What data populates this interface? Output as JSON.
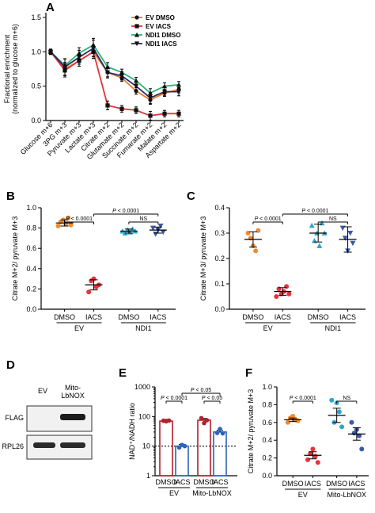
{
  "colors": {
    "ev_dmso": "#e8792b",
    "ev_iacs": "#e8323a",
    "ndi1_dmso": "#2bb37a",
    "ndi1_iacs": "#2b2a6b",
    "b_ev_dmso": "#f08a2c",
    "b_ev_iacs": "#e8323a",
    "b_ndi_dmso": "#2aa7c9",
    "b_ndi_iacs": "#3a5aa8",
    "e_ev_dmso": "#b3202a",
    "e_ev_iacs": "#2a63b8",
    "e_mito_dmso": "#b3202a",
    "e_mito_iacs": "#2a63b8"
  },
  "chart_data": [
    {
      "panel": "A",
      "type": "line",
      "ylabel": "Fractional enrichment\n(normalized to glucose m+6)",
      "categories": [
        "Glucose m+6",
        "3PG m+3",
        "Pyruvate m+3",
        "Lactate m+3",
        "Citrate m+2",
        "Glutamate m+2",
        "Succinate m+2",
        "Fumarate m+2",
        "Malate m+2",
        "Aspartate m+2"
      ],
      "ylim": [
        0,
        1.5
      ],
      "yticks": [
        "0.0",
        "0.5",
        "1.0",
        "1.5"
      ],
      "legend": [
        "EV DMSO",
        "EV IACS",
        "NDI1 DMSO",
        "NDI1 IACS"
      ],
      "series": [
        {
          "name": "EV DMSO",
          "values": [
            1.0,
            0.75,
            0.87,
            1.0,
            0.7,
            0.62,
            0.43,
            0.3,
            0.4,
            0.45
          ]
        },
        {
          "name": "EV IACS",
          "values": [
            1.0,
            0.73,
            0.87,
            1.0,
            0.22,
            0.17,
            0.15,
            0.07,
            0.1,
            0.1
          ]
        },
        {
          "name": "NDI1 DMSO",
          "values": [
            1.0,
            0.8,
            0.98,
            1.1,
            0.78,
            0.7,
            0.58,
            0.4,
            0.5,
            0.52
          ]
        },
        {
          "name": "NDI1 IACS",
          "values": [
            1.0,
            0.78,
            0.92,
            1.05,
            0.7,
            0.65,
            0.5,
            0.33,
            0.42,
            0.42
          ]
        }
      ]
    },
    {
      "panel": "B",
      "type": "scatter",
      "ylabel": "Citrate M+2/ pyruvate M+3",
      "ylim": [
        0.0,
        1.0
      ],
      "yticks": [
        "0.0",
        "0.2",
        "0.4",
        "0.6",
        "0.8",
        "1.0"
      ],
      "categories": [
        "DMSO",
        "IACS",
        "DMSO",
        "IACS"
      ],
      "groups": [
        "EV",
        "NDI1"
      ],
      "points": [
        [
          0.82,
          0.86,
          0.88,
          0.84,
          0.9,
          0.83
        ],
        [
          0.17,
          0.28,
          0.3,
          0.22,
          0.24
        ],
        [
          0.77,
          0.75,
          0.78,
          0.76,
          0.79,
          0.77
        ],
        [
          0.8,
          0.74,
          0.78,
          0.82,
          0.76
        ]
      ],
      "means": [
        0.85,
        0.24,
        0.77,
        0.78
      ],
      "errors": [
        0.03,
        0.05,
        0.02,
        0.03
      ],
      "brackets": [
        {
          "from": 0,
          "to": 1,
          "label": "P < 0.0001",
          "level": 0
        },
        {
          "from": 2,
          "to": 3,
          "label": "NS",
          "level": 0
        },
        {
          "from": 1,
          "to": 3,
          "label": "P < 0.0001",
          "level": 1
        }
      ]
    },
    {
      "panel": "C",
      "type": "scatter",
      "ylabel": "Citrate M+3/ pyruvate M+3",
      "ylim": [
        0.0,
        0.4
      ],
      "yticks": [
        "0.0",
        "0.1",
        "0.2",
        "0.3",
        "0.4"
      ],
      "categories": [
        "DMSO",
        "IACS",
        "DMSO",
        "IACS"
      ],
      "groups": [
        "EV",
        "NDI1"
      ],
      "points": [
        [
          0.3,
          0.28,
          0.25,
          0.23,
          0.31
        ],
        [
          0.05,
          0.08,
          0.06,
          0.07,
          0.09,
          0.06
        ],
        [
          0.33,
          0.27,
          0.3,
          0.25,
          0.34,
          0.3
        ],
        [
          0.32,
          0.28,
          0.23,
          0.3,
          0.26
        ]
      ],
      "means": [
        0.275,
        0.07,
        0.3,
        0.275
      ],
      "errors": [
        0.03,
        0.015,
        0.035,
        0.05
      ],
      "brackets": [
        {
          "from": 0,
          "to": 1,
          "label": "P < 0.0001",
          "level": 0
        },
        {
          "from": 2,
          "to": 3,
          "label": "NS",
          "level": 0
        },
        {
          "from": 1,
          "to": 3,
          "label": "P < 0.0001",
          "level": 1
        }
      ]
    },
    {
      "panel": "E",
      "type": "bar",
      "ylabel": "NAD⁺/NADH ratio",
      "ylim": [
        1,
        1000
      ],
      "yscale": "log",
      "yticks": [
        "1",
        "10",
        "100",
        "1000"
      ],
      "categories": [
        "DMSO",
        "IACS",
        "DMSO",
        "IACS"
      ],
      "groups": [
        "EV",
        "Mito-LbNOX"
      ],
      "values": [
        70,
        10,
        75,
        30
      ],
      "points": [
        [
          72,
          69,
          73
        ],
        [
          9,
          11,
          10
        ],
        [
          88,
          60,
          75
        ],
        [
          28,
          38,
          27
        ]
      ],
      "baseline": 10,
      "brackets": [
        {
          "from": 0,
          "to": 1,
          "label": "P < 0.0001",
          "level": 0
        },
        {
          "from": 2,
          "to": 3,
          "label": "P < 0.05",
          "level": 0
        },
        {
          "from": 1,
          "to": 3,
          "label": "P < 0.05",
          "level": 1
        }
      ]
    },
    {
      "panel": "F",
      "type": "scatter",
      "ylabel": "Citrate M+2/ pyruvate M+3",
      "ylim": [
        0.0,
        1.0
      ],
      "yticks": [
        "0.0",
        "0.2",
        "0.4",
        "0.6",
        "0.8",
        "1.0"
      ],
      "categories": [
        "DMSO",
        "IACS",
        "DMSO",
        "IACS"
      ],
      "groups": [
        "EV",
        "Mito-LbNOX"
      ],
      "points": [
        [
          0.6,
          0.65,
          0.67,
          0.63,
          0.62
        ],
        [
          0.18,
          0.25,
          0.3,
          0.22,
          0.15
        ],
        [
          0.85,
          0.6,
          0.82,
          0.72,
          0.55
        ],
        [
          0.6,
          0.48,
          0.52,
          0.45,
          0.3
        ]
      ],
      "means": [
        0.63,
        0.23,
        0.68,
        0.47
      ],
      "errors": [
        0.02,
        0.04,
        0.08,
        0.07
      ],
      "brackets": [
        {
          "from": 0,
          "to": 1,
          "label": "P < 0.0001",
          "level": 0
        },
        {
          "from": 2,
          "to": 3,
          "label": "NS",
          "level": 0
        }
      ]
    }
  ],
  "western": {
    "lanes": [
      "EV",
      "Mito-\nLbNOX"
    ],
    "bands": [
      "FLAG",
      "RPL26"
    ]
  },
  "panels": [
    "A",
    "B",
    "C",
    "D",
    "E",
    "F"
  ]
}
